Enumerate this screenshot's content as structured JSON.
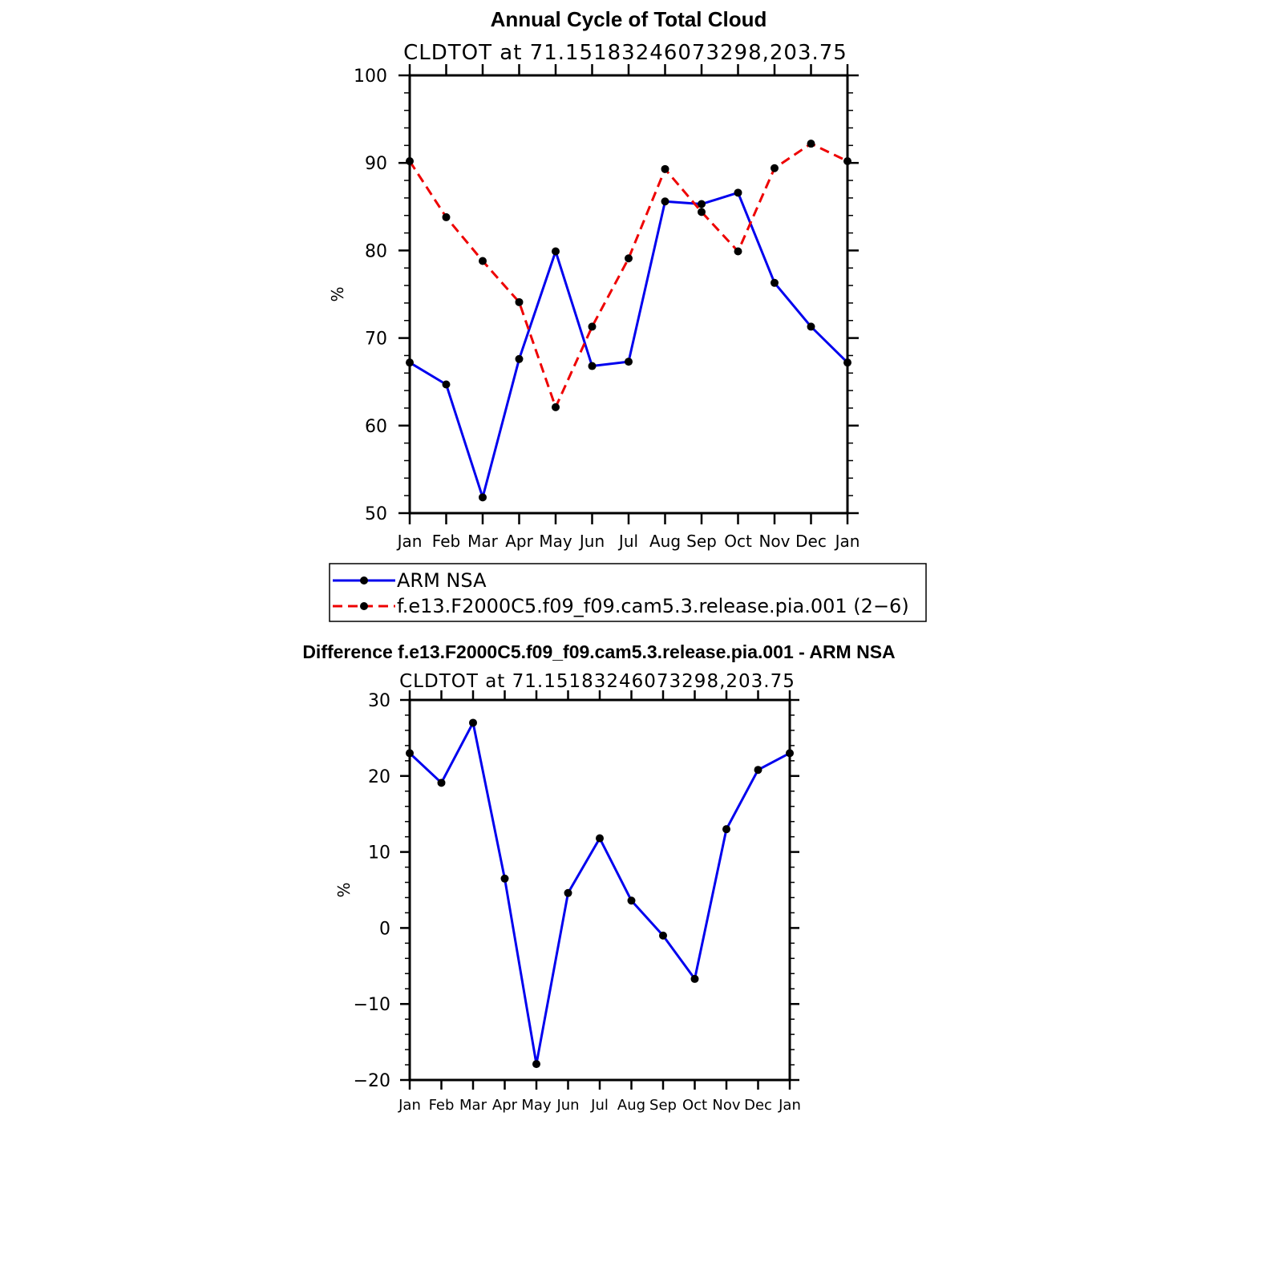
{
  "chart_data": [
    {
      "type": "line",
      "title": "Annual Cycle of Total Cloud",
      "subtitle": "CLDTOT at 71.15183246073298,203.75",
      "ylabel": "%",
      "xlabel": "",
      "ylim": [
        50,
        100
      ],
      "yticks": [
        "50",
        "60",
        "70",
        "80",
        "90",
        "100"
      ],
      "categories": [
        "Jan",
        "Feb",
        "Mar",
        "Apr",
        "May",
        "Jun",
        "Jul",
        "Aug",
        "Sep",
        "Oct",
        "Nov",
        "Dec",
        "Jan"
      ],
      "grid": false,
      "legend_position": "bottom",
      "series": [
        {
          "name": "ARM NSA",
          "color": "#0000ee",
          "style": "solid",
          "values": [
            67.2,
            64.7,
            51.8,
            67.6,
            79.9,
            66.8,
            67.3,
            85.6,
            85.3,
            86.6,
            76.3,
            71.3,
            67.2
          ]
        },
        {
          "name": "f.e13.F2000C5.f09_f09.cam5.3.release.pia.001 (2−6)",
          "color": "#ee0000",
          "style": "dashed",
          "values": [
            90.2,
            83.8,
            78.8,
            74.1,
            62.1,
            71.3,
            79.1,
            89.3,
            84.4,
            79.9,
            89.4,
            92.2,
            90.2
          ]
        }
      ]
    },
    {
      "type": "line",
      "title": "Difference f.e13.F2000C5.f09_f09.cam5.3.release.pia.001 - ARM NSA",
      "subtitle": "CLDTOT at 71.15183246073298,203.75",
      "ylabel": "%",
      "xlabel": "",
      "ylim": [
        -20,
        30
      ],
      "yticks": [
        "−20",
        "−10",
        "0",
        "10",
        "20",
        "30"
      ],
      "categories": [
        "Jan",
        "Feb",
        "Mar",
        "Apr",
        "May",
        "Jun",
        "Jul",
        "Aug",
        "Sep",
        "Oct",
        "Nov",
        "Dec",
        "Jan"
      ],
      "grid": false,
      "series": [
        {
          "color": "#0000ee",
          "style": "solid",
          "values": [
            23.0,
            19.1,
            27.0,
            6.5,
            -17.9,
            4.6,
            11.8,
            3.6,
            -1.0,
            -6.7,
            13.0,
            20.8,
            23.0
          ]
        }
      ]
    }
  ]
}
